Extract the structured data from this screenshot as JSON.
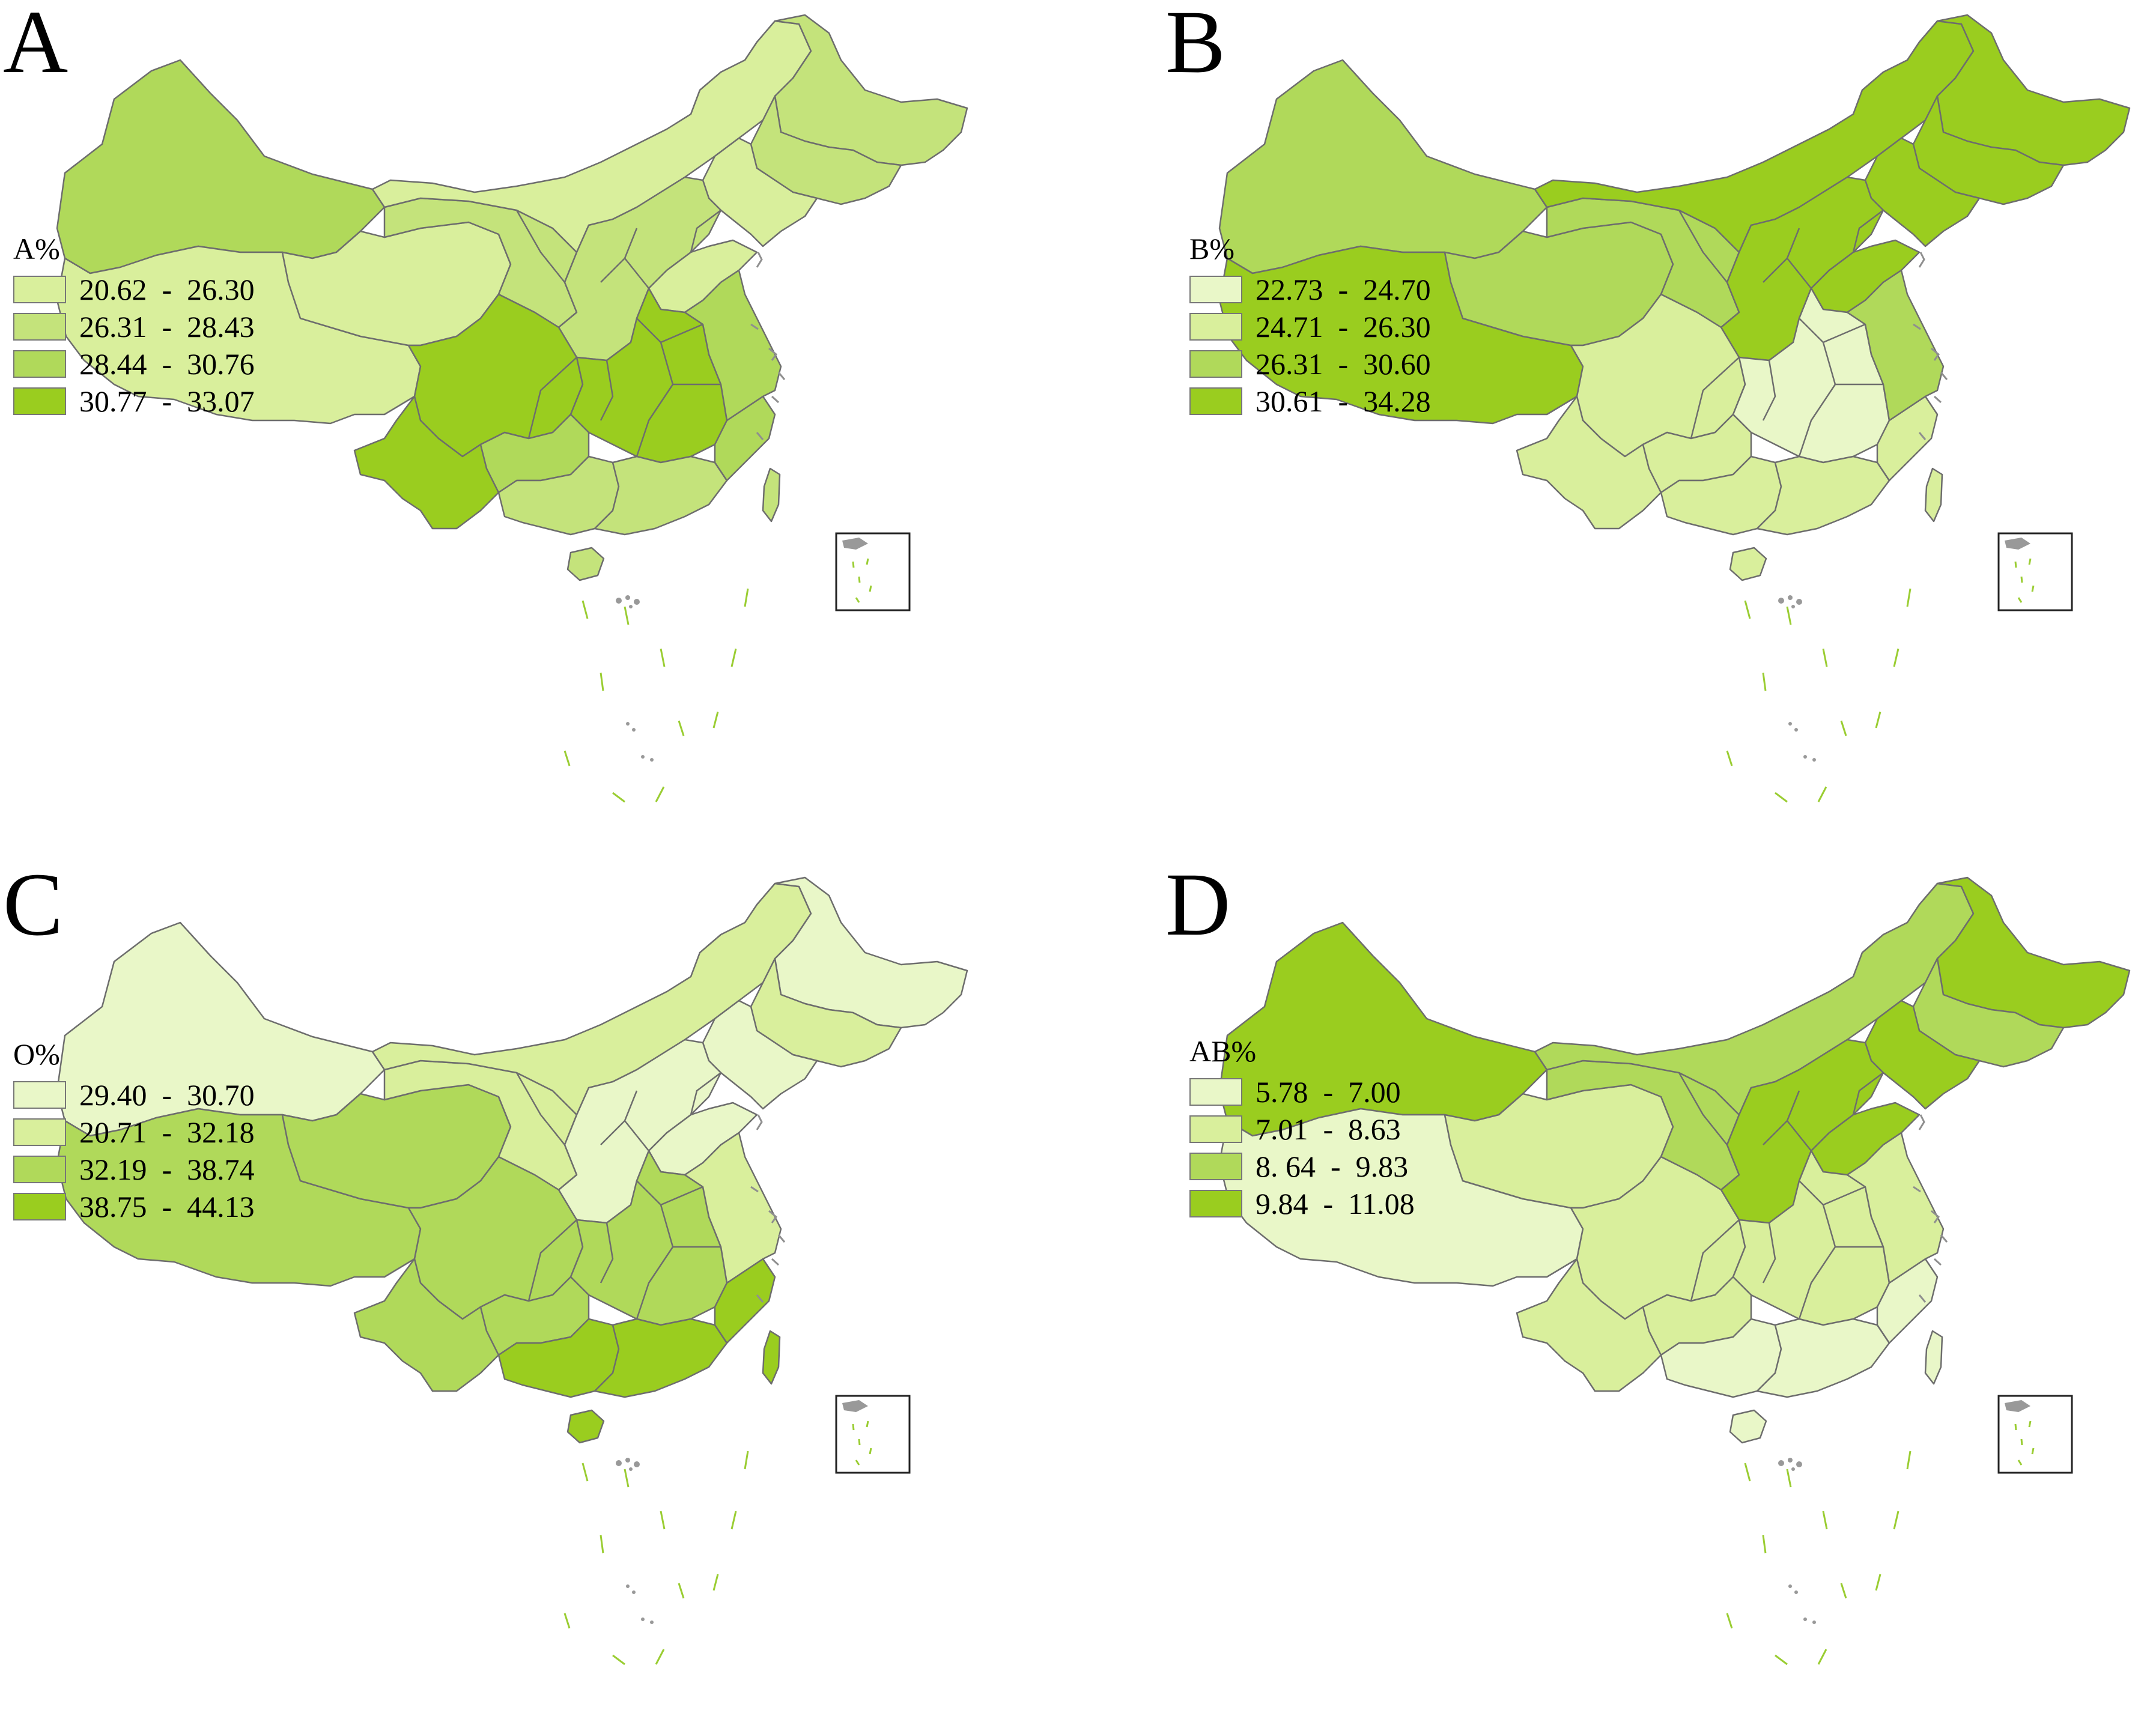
{
  "colors": {
    "class1_light": "#e9f7c8",
    "class1": "#d9ef9c",
    "class2": "#c4e37b",
    "class3": "#b0d95a",
    "class4": "#9acd1f"
  },
  "panels": [
    {
      "letter": "A",
      "legend_title": "A%",
      "legend": [
        {
          "label": "20.62  -  26.30",
          "color": "#d9ef9c"
        },
        {
          "label": "26.31  -  28.43",
          "color": "#c4e37b"
        },
        {
          "label": "28.44  -  30.76",
          "color": "#b0d95a"
        },
        {
          "label": "30.77  -  33.07",
          "color": "#9acd1f"
        }
      ],
      "regions": {
        "xinjiang": 3,
        "tibet": 1,
        "qinghai": 1,
        "gansu": 2,
        "inner_mongolia": 1,
        "heilongjiang": 2,
        "jilin": 2,
        "liaoning": 1,
        "north_china": 2,
        "shandong": 1,
        "sichuan": 4,
        "yunnan": 4,
        "central": 4,
        "guizhou": 3,
        "guangxi": 2,
        "guangdong": 2,
        "fujian": 3,
        "east": 3,
        "hainan": 2,
        "taiwan": 2
      }
    },
    {
      "letter": "B",
      "legend_title": "B%",
      "legend": [
        {
          "label": "22.73  -  24.70",
          "color": "#e9f7c8"
        },
        {
          "label": "24.71  -  26.30",
          "color": "#d9ef9c"
        },
        {
          "label": "26.31  -  30.60",
          "color": "#b0d95a"
        },
        {
          "label": "30.61  -  34.28",
          "color": "#9acd1f"
        }
      ],
      "regions": {
        "xinjiang": 3,
        "tibet": 4,
        "qinghai": 3,
        "gansu": 3,
        "inner_mongolia": 4,
        "heilongjiang": 4,
        "jilin": 4,
        "liaoning": 4,
        "north_china": 4,
        "shandong": 4,
        "sichuan": 2,
        "yunnan": 2,
        "central": 1,
        "guizhou": 2,
        "guangxi": 2,
        "guangdong": 2,
        "fujian": 2,
        "east": 3,
        "hainan": 2,
        "taiwan": 2
      }
    },
    {
      "letter": "C",
      "legend_title": "O%",
      "legend": [
        {
          "label": "29.40  -  30.70",
          "color": "#e9f7c8"
        },
        {
          "label": "20.71  -  32.18",
          "color": "#d9ef9c"
        },
        {
          "label": "32.19  -  38.74",
          "color": "#b0d95a"
        },
        {
          "label": "38.75  -  44.13",
          "color": "#9acd1f"
        }
      ],
      "regions": {
        "xinjiang": 1,
        "tibet": 3,
        "qinghai": 3,
        "gansu": 2,
        "inner_mongolia": 2,
        "heilongjiang": 1,
        "jilin": 2,
        "liaoning": 1,
        "north_china": 1,
        "shandong": 1,
        "sichuan": 3,
        "yunnan": 3,
        "central": 3,
        "guizhou": 3,
        "guangxi": 4,
        "guangdong": 4,
        "fujian": 4,
        "east": 2,
        "hainan": 4,
        "taiwan": 4
      }
    },
    {
      "letter": "D",
      "legend_title": "AB%",
      "legend": [
        {
          "label": "5.78  -  7.00",
          "color": "#e9f7c8"
        },
        {
          "label": "7.01  -  8.63",
          "color": "#d9ef9c"
        },
        {
          "label": "8. 64  -  9.83",
          "color": "#b0d95a"
        },
        {
          "label": "9.84  -  11.08",
          "color": "#9acd1f"
        }
      ],
      "regions": {
        "xinjiang": 4,
        "tibet": 1,
        "qinghai": 2,
        "gansu": 3,
        "inner_mongolia": 3,
        "heilongjiang": 4,
        "jilin": 3,
        "liaoning": 4,
        "north_china": 4,
        "shandong": 4,
        "sichuan": 2,
        "yunnan": 2,
        "central": 2,
        "guizhou": 2,
        "guangxi": 1,
        "guangdong": 1,
        "fujian": 1,
        "east": 2,
        "hainan": 1,
        "taiwan": 1
      }
    }
  ]
}
